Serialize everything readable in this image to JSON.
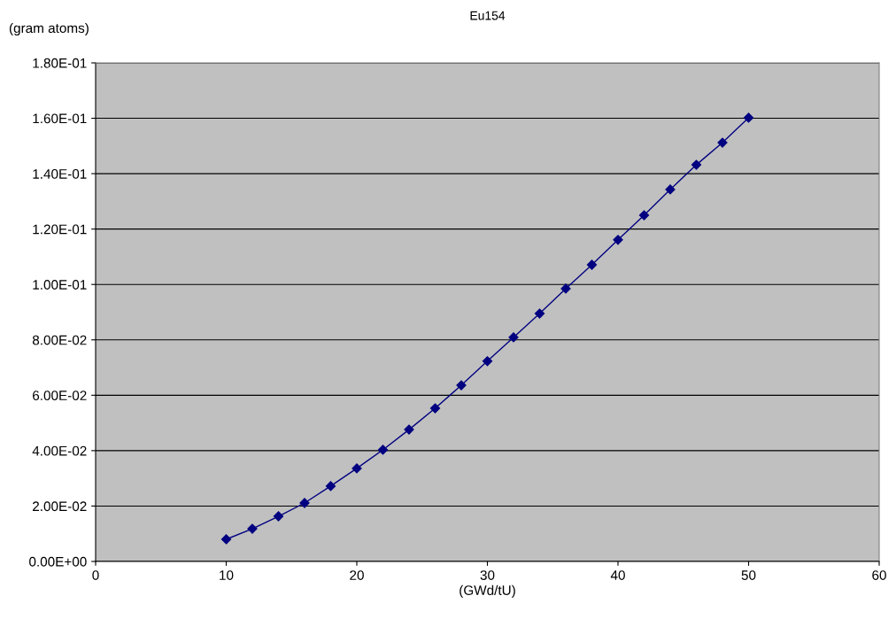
{
  "chart_data": {
    "type": "line",
    "title": "Eu154",
    "xlabel": "(GWd/tU)",
    "ylabel": "(gram atoms)",
    "x": [
      10,
      12,
      14,
      16,
      18,
      20,
      22,
      24,
      26,
      28,
      30,
      32,
      34,
      36,
      38,
      40,
      42,
      44,
      46,
      48,
      50
    ],
    "series": [
      {
        "color": "#000080",
        "values": [
          0.008,
          0.0118,
          0.0163,
          0.0211,
          0.0272,
          0.0336,
          0.0403,
          0.0476,
          0.0553,
          0.0636,
          0.0723,
          0.0809,
          0.0895,
          0.0985,
          0.1071,
          0.1161,
          0.125,
          0.1343,
          0.1432,
          0.1512,
          0.1602
        ]
      }
    ],
    "xlim": [
      0,
      60
    ],
    "xticks": [
      0,
      10,
      20,
      30,
      40,
      50,
      60
    ],
    "ylim": [
      0,
      0.18
    ],
    "yticks": [
      {
        "value": 0,
        "label": "0.00E+00"
      },
      {
        "value": 0.02,
        "label": "2.00E-02"
      },
      {
        "value": 0.04,
        "label": "4.00E-02"
      },
      {
        "value": 0.06,
        "label": "6.00E-02"
      },
      {
        "value": 0.08,
        "label": "8.00E-02"
      },
      {
        "value": 0.1,
        "label": "1.00E-01"
      },
      {
        "value": 0.12,
        "label": "1.20E-01"
      },
      {
        "value": 0.14,
        "label": "1.40E-01"
      },
      {
        "value": 0.16,
        "label": "1.60E-01"
      },
      {
        "value": 0.18,
        "label": "1.80E-01"
      }
    ],
    "grid": "y",
    "marker": "diamond",
    "line_style": "solid",
    "legend": false
  }
}
